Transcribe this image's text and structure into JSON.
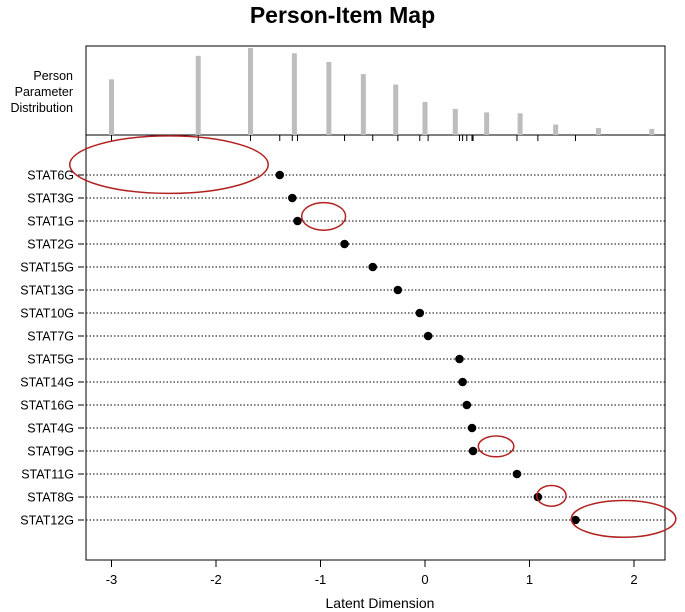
{
  "chart_data": {
    "type": "scatter",
    "title": "Person-Item Map",
    "xlabel": "Latent Dimension",
    "person_label": [
      "Person",
      "Parameter",
      "Distribution"
    ],
    "xlim": [
      -3.2,
      2.4
    ],
    "x_ticks": [
      -3,
      -2,
      -1,
      0,
      1,
      2
    ],
    "items": [
      {
        "name": "STAT6G",
        "location": -1.39
      },
      {
        "name": "STAT3G",
        "location": -1.27
      },
      {
        "name": "STAT1G",
        "location": -1.22
      },
      {
        "name": "STAT2G",
        "location": -0.77
      },
      {
        "name": "STAT15G",
        "location": -0.5
      },
      {
        "name": "STAT13G",
        "location": -0.26
      },
      {
        "name": "STAT10G",
        "location": -0.05
      },
      {
        "name": "STAT7G",
        "location": 0.03
      },
      {
        "name": "STAT5G",
        "location": 0.33
      },
      {
        "name": "STAT14G",
        "location": 0.36
      },
      {
        "name": "STAT16G",
        "location": 0.4
      },
      {
        "name": "STAT4G",
        "location": 0.45
      },
      {
        "name": "STAT9G",
        "location": 0.46
      },
      {
        "name": "STAT11G",
        "location": 0.88
      },
      {
        "name": "STAT8G",
        "location": 1.08
      },
      {
        "name": "STAT12G",
        "location": 1.44
      }
    ],
    "person_distribution": [
      {
        "theta": -3.0,
        "count": 64
      },
      {
        "theta": -2.17,
        "count": 91
      },
      {
        "theta": -1.67,
        "count": 100
      },
      {
        "theta": -1.25,
        "count": 94
      },
      {
        "theta": -0.92,
        "count": 84
      },
      {
        "theta": -0.59,
        "count": 70
      },
      {
        "theta": -0.28,
        "count": 58
      },
      {
        "theta": 0.0,
        "count": 38
      },
      {
        "theta": 0.29,
        "count": 30
      },
      {
        "theta": 0.59,
        "count": 26
      },
      {
        "theta": 0.91,
        "count": 25
      },
      {
        "theta": 1.25,
        "count": 12
      },
      {
        "theta": 1.66,
        "count": 8
      },
      {
        "theta": 2.17,
        "count": 7
      }
    ],
    "threshold_ticks": [
      -3.0,
      -2.17,
      -1.67,
      -1.39,
      -1.27,
      -1.22,
      -0.77,
      -0.5,
      -0.26,
      -0.05,
      0.03,
      0.33,
      0.36,
      0.4,
      0.45,
      0.46,
      0.88,
      1.08,
      1.44
    ],
    "annotations": [
      {
        "type": "ellipse",
        "cx": -2.45,
        "cy_item": -0.45,
        "rx": 0.95,
        "ry_items": 1.25,
        "color": "#b22222"
      },
      {
        "type": "ellipse",
        "cx": -0.97,
        "cy_item": 1.8,
        "rx": 0.21,
        "ry_items": 0.6,
        "color": "#b22222"
      },
      {
        "type": "ellipse",
        "cx": 0.68,
        "cy_item": 11.8,
        "rx": 0.17,
        "ry_items": 0.45,
        "color": "#b22222"
      },
      {
        "type": "ellipse",
        "cx": 1.21,
        "cy_item": 13.95,
        "rx": 0.14,
        "ry_items": 0.45,
        "color": "#b22222"
      },
      {
        "type": "ellipse",
        "cx": 1.9,
        "cy_item": 14.95,
        "rx": 0.5,
        "ry_items": 0.8,
        "color": "#b22222"
      }
    ],
    "colors": {
      "bars": "#bdbdbd",
      "points": "#000000",
      "annotation": "#b22222",
      "guides": "#000000"
    }
  }
}
